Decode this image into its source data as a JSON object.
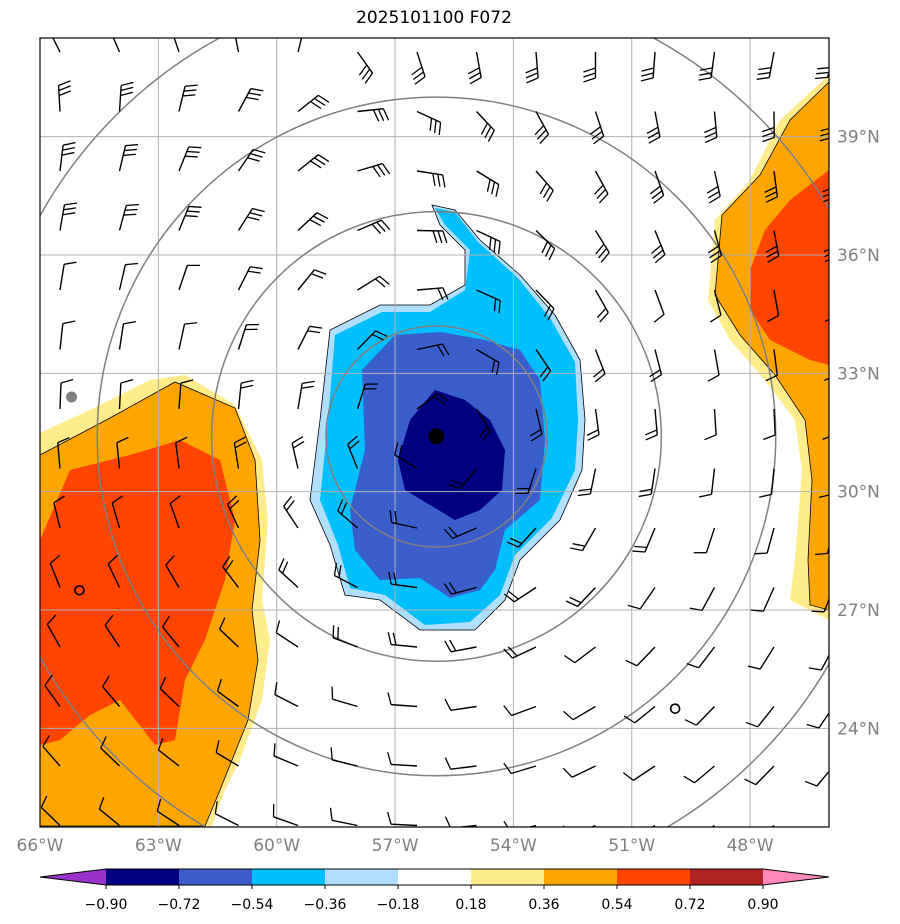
{
  "chart_data": {
    "type": "heatmap",
    "title": "2025101100 F072",
    "x_ticks": [
      "66°W",
      "63°W",
      "60°W",
      "57°W",
      "54°W",
      "51°W",
      "48°W"
    ],
    "y_ticks": [
      "24°N",
      "27°N",
      "30°N",
      "33°N",
      "36°N",
      "39°N"
    ],
    "x_range": [
      -66,
      -46
    ],
    "y_range": [
      21.5,
      41.5
    ],
    "colorbar": {
      "levels": [
        "−0.90",
        "−0.72",
        "−0.54",
        "−0.36",
        "−0.18",
        "0.18",
        "0.36",
        "0.54",
        "0.72",
        "0.90"
      ],
      "colors": [
        "#9933cc",
        "#000080",
        "#3a5fcd",
        "#00bfff",
        "#b0e0ff",
        "#ffffff",
        "#ffec8b",
        "#ffa500",
        "#ff4500",
        "#b22222",
        "#ff88bb"
      ]
    },
    "center": {
      "lon": -55.95,
      "lat": 31.4
    },
    "range_rings_deg": [
      2.8,
      5.7,
      8.6,
      11.5
    ],
    "grid": true,
    "fields": {
      "anomaly_colors": {
        "white": "#ffffff",
        "light_blue": "#b0e0ff",
        "cyan": "#00bfff",
        "royal_blue": "#3a5fcd",
        "navy": "#000080",
        "yellow": "#ffec8b",
        "orange": "#ffa500",
        "red_orange": "#ff4500"
      }
    },
    "markers": [
      {
        "type": "filled-dot",
        "lon": -55.95,
        "lat": 31.4
      },
      {
        "type": "gray-dot",
        "lon": -65.2,
        "lat": 32.4
      },
      {
        "type": "open-circle",
        "lon": -65.0,
        "lat": 27.5
      },
      {
        "type": "open-circle",
        "lon": -49.9,
        "lat": 24.5
      }
    ]
  }
}
